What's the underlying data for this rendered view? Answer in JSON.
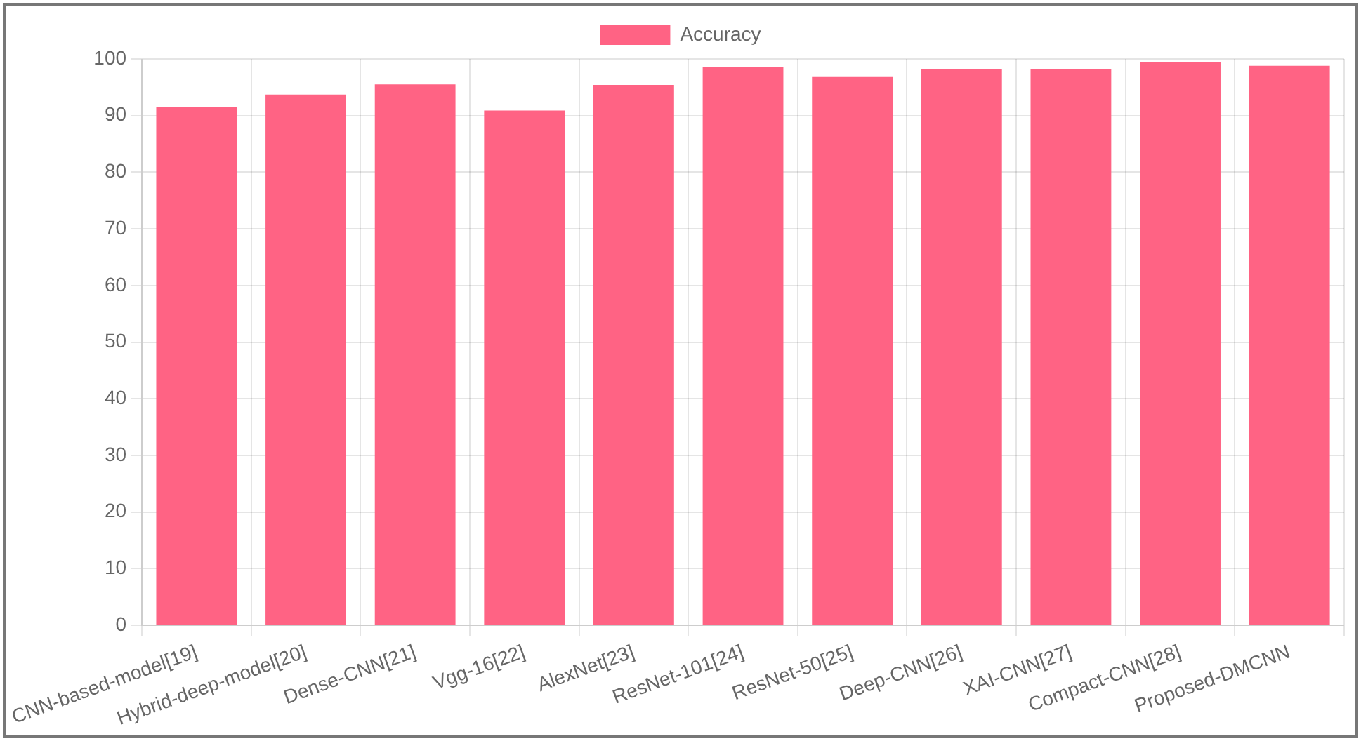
{
  "chart_data": {
    "type": "bar",
    "categories": [
      "CNN-based-model[19]",
      "Hybrid-deep-model[20]",
      "Dense-CNN[21]",
      "Vgg-16[22]",
      "AlexNet[23]",
      "ResNet-101[24]",
      "ResNet-50[25]",
      "Deep-CNN[26]",
      "XAI-CNN[27]",
      "Compact-CNN[28]",
      "Proposed-DMCNN"
    ],
    "series": [
      {
        "name": "Accuracy",
        "color": "#ff6384",
        "values": [
          91.5,
          93.7,
          95.5,
          90.9,
          95.4,
          98.5,
          96.8,
          98.2,
          98.2,
          99.4,
          98.8
        ]
      }
    ],
    "ylim": [
      0,
      100
    ],
    "yticks": [
      0,
      10,
      20,
      30,
      40,
      50,
      60,
      70,
      80,
      90,
      100
    ],
    "grid": true,
    "legend": "top"
  }
}
